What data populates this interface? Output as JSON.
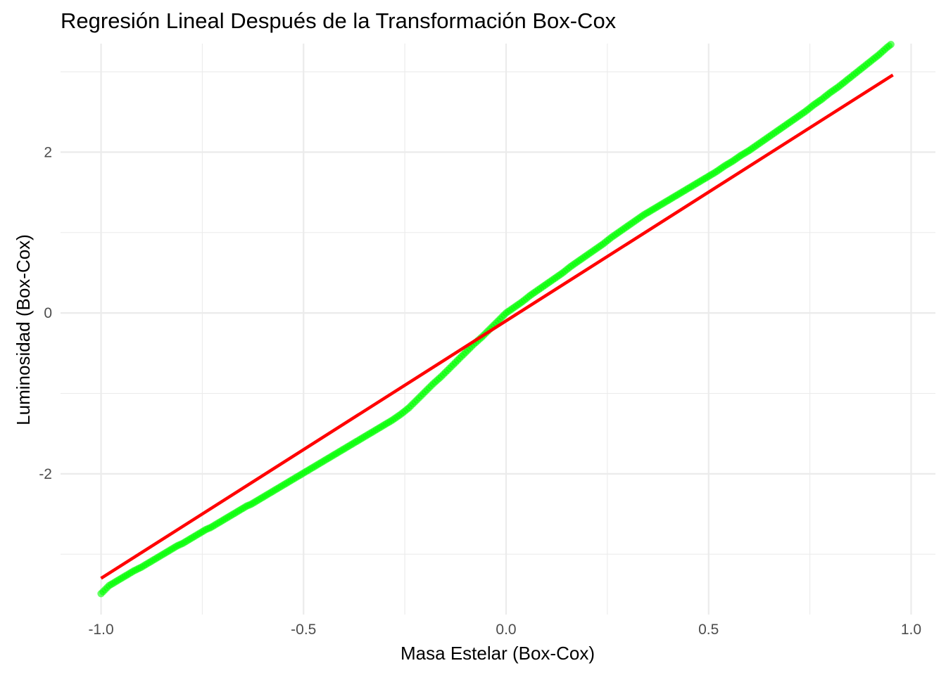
{
  "chart_data": {
    "type": "scatter",
    "title": "Regresión Lineal Después de la Transformación Box-Cox",
    "xlabel": "Masa Estelar (Box-Cox)",
    "ylabel": "Luminosidad (Box-Cox)",
    "xlim": [
      -1.1,
      1.06
    ],
    "ylim": [
      -3.75,
      3.35
    ],
    "x_ticks": [
      -1.0,
      -0.5,
      0.0,
      0.5,
      1.0
    ],
    "x_tick_labels": [
      "-1.0",
      "-0.5",
      "0.0",
      "0.5",
      "1.0"
    ],
    "y_ticks": [
      -2,
      0,
      2
    ],
    "y_tick_labels": [
      "-2",
      "0",
      "2"
    ],
    "x_minor_ticks": [
      -0.75,
      -0.25,
      0.25,
      0.75
    ],
    "y_minor_ticks": [
      -3,
      -1,
      1,
      3
    ],
    "grid": true,
    "legend": "none",
    "series": [
      {
        "type": "scatter",
        "color": "#00ff00",
        "opacity": 0.6,
        "x": [
          -1.0,
          -0.98,
          -0.97,
          -0.96,
          -0.95,
          -0.94,
          -0.93,
          -0.92,
          -0.9,
          -0.89,
          -0.87,
          -0.85,
          -0.84,
          -0.83,
          -0.81,
          -0.8,
          -0.78,
          -0.77,
          -0.76,
          -0.75,
          -0.74,
          -0.73,
          -0.72,
          -0.71,
          -0.7,
          -0.69,
          -0.68,
          -0.67,
          -0.66,
          -0.65,
          -0.64,
          -0.63,
          -0.62,
          -0.61,
          -0.6,
          -0.59,
          -0.58,
          -0.57,
          -0.56,
          -0.55,
          -0.54,
          -0.53,
          -0.52,
          -0.51,
          -0.5,
          -0.48,
          -0.46,
          -0.44,
          -0.42,
          -0.4,
          -0.38,
          -0.36,
          -0.34,
          -0.32,
          -0.3,
          -0.28,
          -0.26,
          -0.24,
          -0.22,
          -0.2,
          -0.18,
          -0.16,
          -0.14,
          -0.12,
          -0.1,
          -0.08,
          -0.06,
          -0.04,
          -0.02,
          0.0,
          0.02,
          0.04,
          0.06,
          0.08,
          0.1,
          0.12,
          0.14,
          0.16,
          0.18,
          0.2,
          0.22,
          0.24,
          0.26,
          0.28,
          0.3,
          0.32,
          0.34,
          0.36,
          0.38,
          0.4,
          0.42,
          0.44,
          0.46,
          0.48,
          0.5,
          0.52,
          0.54,
          0.56,
          0.58,
          0.6,
          0.62,
          0.64,
          0.66,
          0.68,
          0.7,
          0.72,
          0.74,
          0.76,
          0.78,
          0.8,
          0.82,
          0.84,
          0.86,
          0.88,
          0.9,
          0.92,
          0.94,
          0.95
        ],
        "y": [
          -3.49,
          -3.39,
          -3.36,
          -3.33,
          -3.3,
          -3.27,
          -3.24,
          -3.21,
          -3.16,
          -3.13,
          -3.07,
          -3.01,
          -2.98,
          -2.95,
          -2.89,
          -2.87,
          -2.81,
          -2.78,
          -2.75,
          -2.72,
          -2.69,
          -2.67,
          -2.64,
          -2.61,
          -2.58,
          -2.55,
          -2.52,
          -2.49,
          -2.46,
          -2.43,
          -2.4,
          -2.38,
          -2.35,
          -2.32,
          -2.29,
          -2.26,
          -2.23,
          -2.2,
          -2.17,
          -2.14,
          -2.11,
          -2.08,
          -2.05,
          -2.02,
          -1.99,
          -1.93,
          -1.87,
          -1.81,
          -1.75,
          -1.69,
          -1.63,
          -1.57,
          -1.51,
          -1.45,
          -1.39,
          -1.33,
          -1.26,
          -1.18,
          -1.08,
          -0.98,
          -0.88,
          -0.79,
          -0.69,
          -0.59,
          -0.49,
          -0.39,
          -0.3,
          -0.2,
          -0.1,
          0.0,
          0.07,
          0.14,
          0.22,
          0.29,
          0.36,
          0.43,
          0.5,
          0.58,
          0.65,
          0.72,
          0.79,
          0.86,
          0.94,
          1.01,
          1.08,
          1.15,
          1.22,
          1.28,
          1.34,
          1.4,
          1.46,
          1.52,
          1.58,
          1.64,
          1.7,
          1.76,
          1.83,
          1.89,
          1.96,
          2.02,
          2.09,
          2.16,
          2.23,
          2.3,
          2.37,
          2.44,
          2.51,
          2.59,
          2.66,
          2.74,
          2.81,
          2.89,
          2.97,
          3.05,
          3.13,
          3.21,
          3.3,
          3.34
        ]
      },
      {
        "type": "line",
        "color": "#ff0000",
        "x": [
          -1.0,
          0.955
        ],
        "y": [
          -3.3,
          2.96
        ]
      }
    ]
  }
}
